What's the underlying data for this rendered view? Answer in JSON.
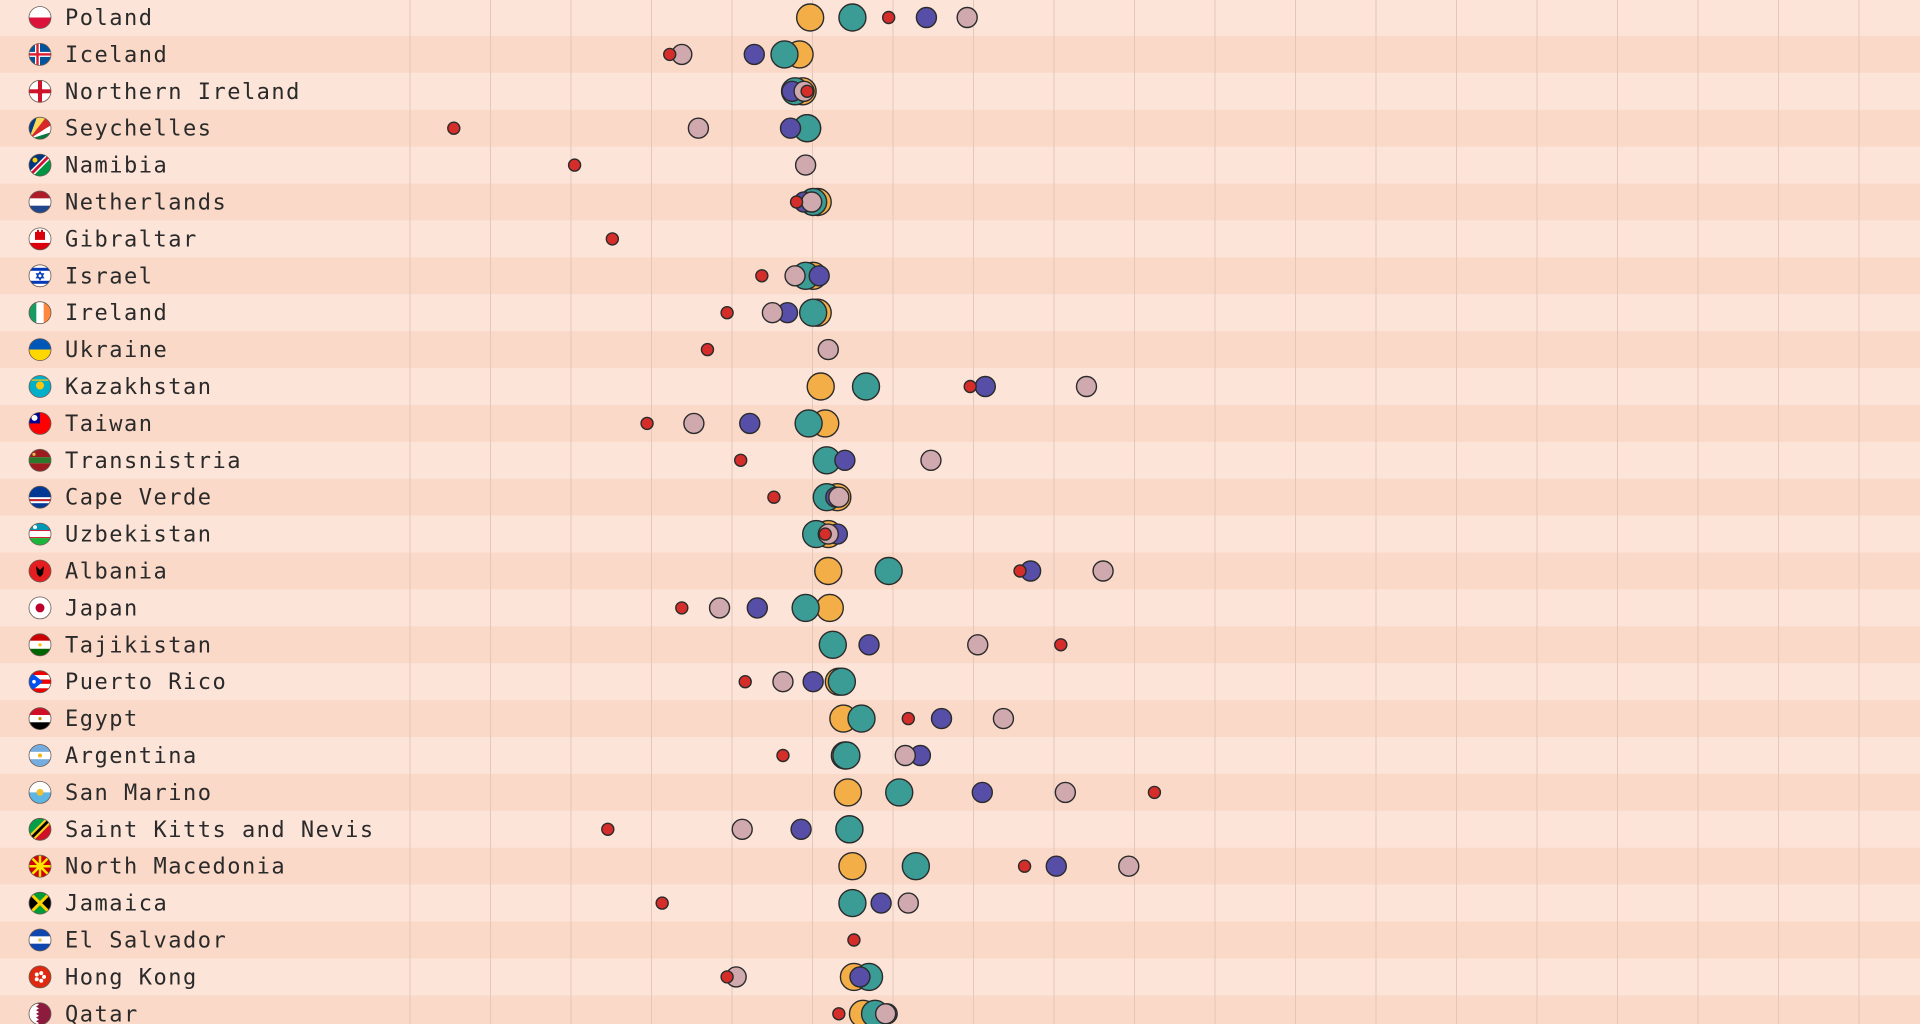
{
  "colors": {
    "orange": "#f4ae48",
    "teal": "#3a9c95",
    "indigo": "#574ea7",
    "red": "#d52e2a",
    "pink": "#cfa9ae"
  },
  "chart_data": {
    "type": "scatter",
    "x_range": [
      0,
      100
    ],
    "grid": true,
    "legend": "none",
    "series": [
      {
        "color_key": "orange",
        "size": "large"
      },
      {
        "color_key": "teal",
        "size": "large"
      },
      {
        "color_key": "indigo",
        "size": "medium"
      },
      {
        "color_key": "pink",
        "size": "medium"
      },
      {
        "color_key": "red",
        "size": "small"
      }
    ],
    "rows": [
      {
        "country": "Poland",
        "flag": "poland-flag",
        "values": {
          "orange": 26.5,
          "teal": 29.3,
          "indigo": 34.2,
          "pink": 36.9,
          "red": 31.7
        }
      },
      {
        "country": "Iceland",
        "flag": "iceland-flag",
        "values": {
          "orange": 25.8,
          "teal": 24.8,
          "indigo": 22.8,
          "pink": 18.0,
          "red": 17.2
        }
      },
      {
        "country": "Northern Ireland",
        "flag": "northern-ireland-flag",
        "values": {
          "orange": 26.0,
          "teal": 25.5,
          "indigo": 25.3,
          "pink": 26.1,
          "red": 26.3
        }
      },
      {
        "country": "Seychelles",
        "flag": "seychelles-flag",
        "values": {
          "orange": 26.3,
          "teal": 26.3,
          "indigo": 25.2,
          "pink": 19.1,
          "red": 2.9
        }
      },
      {
        "country": "Namibia",
        "flag": "namibia-flag",
        "values": {
          "pink": 26.2,
          "red": 10.9
        }
      },
      {
        "country": "Netherlands",
        "flag": "netherlands-flag",
        "values": {
          "orange": 27.0,
          "teal": 26.7,
          "indigo": 26.1,
          "pink": 26.6,
          "red": 25.6
        }
      },
      {
        "country": "Gibraltar",
        "flag": "gibraltar-flag",
        "values": {
          "red": 13.4
        }
      },
      {
        "country": "Israel",
        "flag": "israel-flag",
        "values": {
          "orange": 26.7,
          "teal": 26.2,
          "indigo": 27.1,
          "pink": 25.5,
          "red": 23.3
        }
      },
      {
        "country": "Ireland",
        "flag": "ireland-flag",
        "values": {
          "orange": 27.0,
          "teal": 26.7,
          "indigo": 25.0,
          "pink": 24.0,
          "red": 21.0
        }
      },
      {
        "country": "Ukraine",
        "flag": "ukraine-flag",
        "values": {
          "pink": 27.7,
          "red": 19.7
        }
      },
      {
        "country": "Kazakhstan",
        "flag": "kazakhstan-flag",
        "values": {
          "orange": 27.2,
          "teal": 30.2,
          "indigo": 38.1,
          "pink": 44.8,
          "red": 37.1
        }
      },
      {
        "country": "Taiwan",
        "flag": "taiwan-flag",
        "values": {
          "orange": 27.5,
          "teal": 26.4,
          "indigo": 22.5,
          "pink": 18.8,
          "red": 15.7
        }
      },
      {
        "country": "Transnistria",
        "flag": "transnistria-flag",
        "values": {
          "teal": 27.6,
          "indigo": 28.8,
          "pink": 34.5,
          "red": 21.9
        }
      },
      {
        "country": "Cape Verde",
        "flag": "cape-verde-flag",
        "values": {
          "orange": 28.3,
          "teal": 27.6,
          "indigo": 28.2,
          "pink": 28.4,
          "red": 24.1
        }
      },
      {
        "country": "Uzbekistan",
        "flag": "uzbekistan-flag",
        "values": {
          "orange": 27.7,
          "teal": 26.9,
          "indigo": 28.3,
          "pink": 27.7,
          "red": 27.5
        }
      },
      {
        "country": "Albania",
        "flag": "albania-flag",
        "values": {
          "orange": 27.7,
          "teal": 31.7,
          "indigo": 41.1,
          "pink": 45.9,
          "red": 40.4
        }
      },
      {
        "country": "Japan",
        "flag": "japan-flag",
        "values": {
          "orange": 27.8,
          "teal": 26.2,
          "indigo": 23.0,
          "pink": 20.5,
          "red": 18.0
        }
      },
      {
        "country": "Tajikistan",
        "flag": "tajikistan-flag",
        "values": {
          "teal": 28.0,
          "indigo": 30.4,
          "pink": 37.6,
          "red": 43.1
        }
      },
      {
        "country": "Puerto Rico",
        "flag": "puerto-rico-flag",
        "values": {
          "orange": 28.4,
          "teal": 28.6,
          "indigo": 26.7,
          "pink": 24.7,
          "red": 22.2
        }
      },
      {
        "country": "Egypt",
        "flag": "egypt-flag",
        "values": {
          "orange": 28.7,
          "teal": 29.9,
          "indigo": 35.2,
          "pink": 39.3,
          "red": 33.0
        }
      },
      {
        "country": "Argentina",
        "flag": "argentina-flag",
        "values": {
          "orange": 28.8,
          "teal": 28.9,
          "indigo": 33.8,
          "pink": 32.8,
          "red": 24.7
        }
      },
      {
        "country": "San Marino",
        "flag": "san-marino-flag",
        "values": {
          "orange": 29.0,
          "teal": 32.4,
          "indigo": 37.9,
          "pink": 43.4,
          "red": 49.3
        }
      },
      {
        "country": "Saint Kitts and Nevis",
        "flag": "saint-kitts-and-nevis-flag",
        "values": {
          "orange": 29.1,
          "teal": 29.1,
          "indigo": 25.9,
          "pink": 22.0,
          "red": 13.1
        }
      },
      {
        "country": "North Macedonia",
        "flag": "north-macedonia-flag",
        "values": {
          "orange": 29.3,
          "teal": 33.5,
          "indigo": 42.8,
          "pink": 47.6,
          "red": 40.7
        }
      },
      {
        "country": "Jamaica",
        "flag": "jamaica-flag",
        "values": {
          "teal": 29.3,
          "indigo": 31.2,
          "pink": 33.0,
          "red": 16.7
        }
      },
      {
        "country": "El Salvador",
        "flag": "el-salvador-flag",
        "values": {
          "red": 29.4
        }
      },
      {
        "country": "Hong Kong",
        "flag": "hong-kong-flag",
        "values": {
          "orange": 29.4,
          "teal": 30.4,
          "indigo": 29.8,
          "pink": 21.6,
          "red": 21.0
        }
      },
      {
        "country": "Qatar",
        "flag": "qatar-flag",
        "values": {
          "orange": 30.0,
          "teal": 30.8,
          "indigo": 31.6,
          "pink": 31.5,
          "red": 28.4
        }
      }
    ]
  }
}
